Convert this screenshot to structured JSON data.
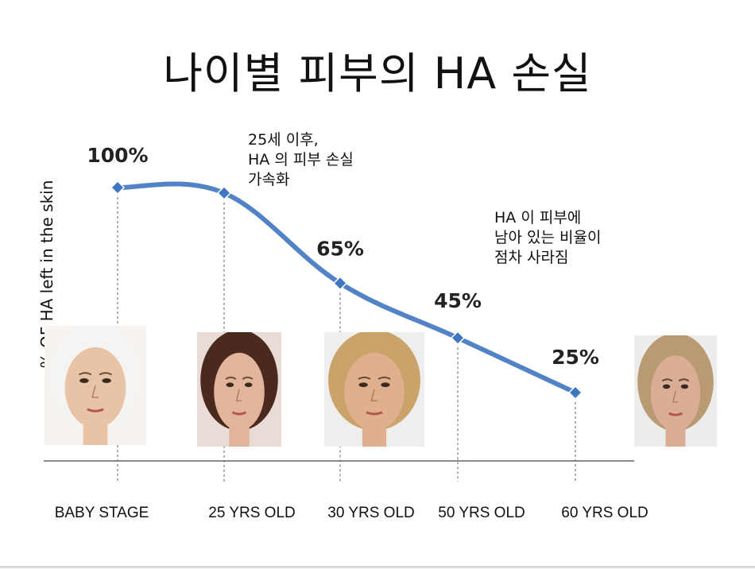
{
  "title": "나이별 피부의 HA 손실",
  "notes": {
    "after_25": "25세 이후,\nHA 의 피부 손실\n가속화",
    "gradual_loss": "HA 이 피부에\n남아 있는 비율이\n점차 사라짐"
  },
  "faces": [
    {
      "name": "baby-photo",
      "skin": "#e8c3a6",
      "hair": "#f4f4f2",
      "bg": "#f6f2ee"
    },
    {
      "name": "age-25-photo",
      "skin": "#e2b49a",
      "hair": "#4a2a1e",
      "bg": "#e9dcd6"
    },
    {
      "name": "age-30-photo",
      "skin": "#e0b08e",
      "hair": "#caa36a",
      "bg": "#eeeeee"
    },
    {
      "name": "age-60-photo",
      "skin": "#d9ae95",
      "hair": "#b99a73",
      "bg": "#ececec"
    }
  ],
  "chart_data": {
    "type": "line",
    "title": "나이별 피부의 HA 손실",
    "ylabel": "% OF HA left in the skin",
    "categories": [
      "BABY STAGE",
      "25 YRS OLD",
      "30 YRS OLD",
      "50 YRS OLD",
      "60 YRS OLD"
    ],
    "values": [
      100,
      98,
      65,
      45,
      25
    ],
    "data_labels": [
      "100%",
      "",
      "65%",
      "45%",
      "25%"
    ],
    "line_color": "#3f76c1",
    "grid": false
  }
}
